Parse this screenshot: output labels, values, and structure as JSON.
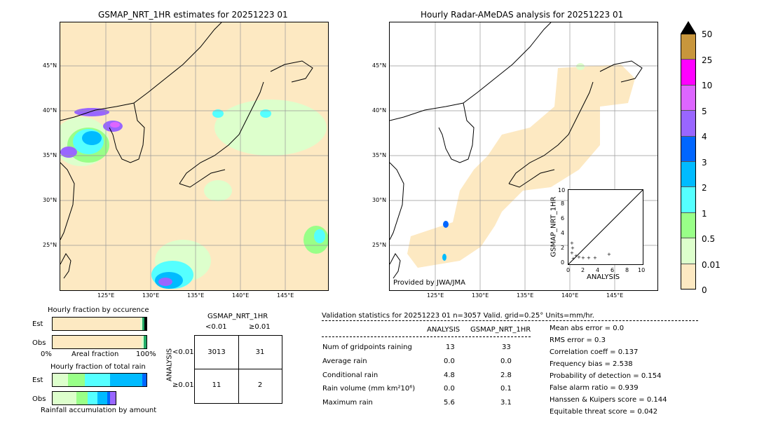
{
  "left_map": {
    "title": "GSMAP_NRT_1HR estimates for 20251223 01",
    "lat_labels": [
      "45°N",
      "40°N",
      "35°N",
      "30°N",
      "25°N"
    ],
    "lon_labels": [
      "125°E",
      "130°E",
      "135°E",
      "140°E",
      "145°E"
    ]
  },
  "right_map": {
    "title": "Hourly Radar-AMeDAS analysis for 20251223 01",
    "lat_labels": [
      "45°N",
      "40°N",
      "35°N",
      "30°N",
      "25°N"
    ],
    "lon_labels": [
      "125°E",
      "130°E",
      "135°E",
      "140°E",
      "145°E"
    ],
    "provider": "Provided by JWA/JMA"
  },
  "inset": {
    "ylabel": "GSMAP_NRT_1HR",
    "xlabel": "ANALYSIS",
    "ticks": [
      "0",
      "2",
      "4",
      "6",
      "8",
      "10"
    ]
  },
  "colorbar": {
    "labels": [
      "50",
      "25",
      "10",
      "5",
      "4",
      "3",
      "2",
      "1",
      "0.5",
      "0.01",
      "0"
    ],
    "colors": [
      "#c8963c",
      "#ff00ff",
      "#dd66ff",
      "#9966ff",
      "#0066ff",
      "#00bbff",
      "#55ffff",
      "#99ff88",
      "#ddffcc",
      "#fde9c2"
    ]
  },
  "fraction_occurrence": {
    "title": "Hourly fraction by occurence",
    "rows": [
      "Est",
      "Obs"
    ],
    "x_left": "0%",
    "x_mid": "Areal fraction",
    "x_right": "100%"
  },
  "fraction_rain": {
    "title": "Hourly fraction of total rain",
    "rows": [
      "Est",
      "Obs"
    ],
    "footer": "Rainfall accumulation by amount"
  },
  "contingency": {
    "col_header": "GSMAP_NRT_1HR",
    "col_lt": "<0.01",
    "col_ge": "≥0.01",
    "row_header": "ANALYSIS",
    "row_lt": "<0.01",
    "row_ge": "≥0.01",
    "cells": [
      "3013",
      "31",
      "11",
      "2"
    ]
  },
  "validation": {
    "header": "Validation statistics for 20251223 01  n=3057 Valid. grid=0.25° Units=mm/hr.",
    "col_analysis": "ANALYSIS",
    "col_gsmap": "GSMAP_NRT_1HR",
    "rows": [
      {
        "label": "Num of gridpoints raining",
        "analysis": "13",
        "gsmap": "33"
      },
      {
        "label": "Average rain",
        "analysis": "0.0",
        "gsmap": "0.0"
      },
      {
        "label": "Conditional rain",
        "analysis": "4.8",
        "gsmap": "2.8"
      },
      {
        "label": "Rain volume (mm km²10⁶)",
        "analysis": "0.0",
        "gsmap": "0.1"
      },
      {
        "label": "Maximum rain",
        "analysis": "5.6",
        "gsmap": "3.1"
      }
    ],
    "scores": [
      "Mean abs error =    0.0",
      "RMS error =    0.3",
      "Correlation coeff =  0.137",
      "Frequency bias =  2.538",
      "Probability of detection =  0.154",
      "False alarm ratio =  0.939",
      "Hanssen & Kuipers score =  0.144",
      "Equitable threat score =  0.042"
    ]
  }
}
